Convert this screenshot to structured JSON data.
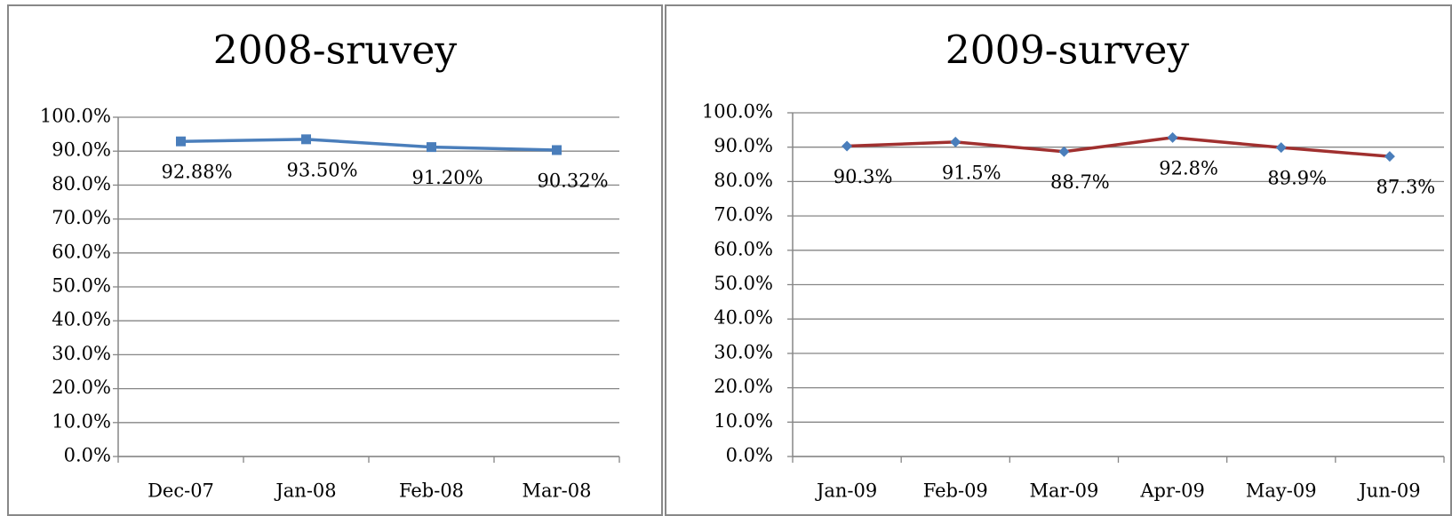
{
  "chart_data": [
    {
      "type": "line",
      "title": "2008-sruvey",
      "categories": [
        "Dec-07",
        "Jan-08",
        "Feb-08",
        "Mar-08"
      ],
      "series": [
        {
          "color": "#4a7ebb",
          "marker": "square",
          "marker_color": "#4a7ebb",
          "values": [
            92.88,
            93.5,
            91.2,
            90.32
          ],
          "value_labels": [
            "92.88%",
            "93.50%",
            "91.20%",
            "90.32%"
          ]
        }
      ],
      "ylim": [
        0,
        100
      ],
      "yticks": [
        {
          "value": 0,
          "label": "0.0%"
        },
        {
          "value": 10,
          "label": "10.0%"
        },
        {
          "value": 20,
          "label": "20.0%"
        },
        {
          "value": 30,
          "label": "30.0%"
        },
        {
          "value": 40,
          "label": "40.0%"
        },
        {
          "value": 50,
          "label": "50.0%"
        },
        {
          "value": 60,
          "label": "60.0%"
        },
        {
          "value": 70,
          "label": "70.0%"
        },
        {
          "value": 80,
          "label": "80.0%"
        },
        {
          "value": 90,
          "label": "90.0%"
        },
        {
          "value": 100,
          "label": "100.0%"
        }
      ],
      "grid": true
    },
    {
      "type": "line",
      "title": "2009-survey",
      "categories": [
        "Jan-09",
        "Feb-09",
        "Mar-09",
        "Apr-09",
        "May-09",
        "Jun-09"
      ],
      "series": [
        {
          "color": "#a0302f",
          "marker": "diamond",
          "marker_color": "#4a7ebb",
          "values": [
            90.3,
            91.5,
            88.7,
            92.8,
            89.9,
            87.3
          ],
          "value_labels": [
            "90.3%",
            "91.5%",
            "88.7%",
            "92.8%",
            "89.9%",
            "87.3%"
          ]
        }
      ],
      "ylim": [
        0,
        100
      ],
      "yticks": [
        {
          "value": 0,
          "label": "0.0%"
        },
        {
          "value": 10,
          "label": "10.0%"
        },
        {
          "value": 20,
          "label": "20.0%"
        },
        {
          "value": 30,
          "label": "30.0%"
        },
        {
          "value": 40,
          "label": "40.0%"
        },
        {
          "value": 50,
          "label": "50.0%"
        },
        {
          "value": 60,
          "label": "60.0%"
        },
        {
          "value": 70,
          "label": "70.0%"
        },
        {
          "value": 80,
          "label": "80.0%"
        },
        {
          "value": 90,
          "label": "90.0%"
        },
        {
          "value": 100,
          "label": "100.0%"
        }
      ],
      "grid": true
    }
  ]
}
